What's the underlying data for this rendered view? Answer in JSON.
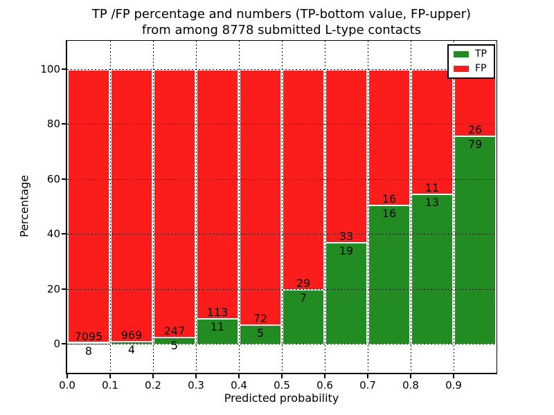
{
  "title": {
    "line1": "TP /FP percentage and numbers (TP-bottom value, FP-upper)",
    "line2": "from among 8778 submitted L-type contacts"
  },
  "chart_data": {
    "type": "bar",
    "subtype": "stacked-percentage",
    "title": "TP /FP percentage and numbers (TP-bottom value, FP-upper) from among 8778 submitted L-type contacts",
    "xlabel": "Predicted probability",
    "ylabel": "Percentage",
    "total_submitted": 8778,
    "bin_width": 0.1,
    "bin_starts": [
      0.0,
      0.1,
      0.2,
      0.3,
      0.4,
      0.5,
      0.6,
      0.7,
      0.8,
      0.9
    ],
    "x_tick_labels": [
      "0.0",
      "0.1",
      "0.2",
      "0.3",
      "0.4",
      "0.5",
      "0.6",
      "0.7",
      "0.8",
      "0.9"
    ],
    "y_ticks": [
      0,
      20,
      40,
      60,
      80,
      100
    ],
    "ylim": [
      -10.6,
      110.3
    ],
    "xlim": [
      0.0,
      1.0
    ],
    "grid": {
      "style": "dotted",
      "color": "#000000"
    },
    "series": [
      {
        "name": "TP",
        "color": "#228b22",
        "counts": [
          8,
          4,
          5,
          11,
          5,
          7,
          19,
          16,
          13,
          79
        ]
      },
      {
        "name": "FP",
        "color": "#fb1c1c",
        "counts": [
          7095,
          969,
          247,
          113,
          72,
          29,
          33,
          16,
          11,
          26
        ]
      }
    ],
    "legend": {
      "position": "upper-right",
      "entries": [
        {
          "label": "TP",
          "color": "#228b22"
        },
        {
          "label": "FP",
          "color": "#fb1c1c"
        }
      ]
    }
  },
  "colors": {
    "tp": "#228b22",
    "fp": "#fb1c1c",
    "background": "#ffffff",
    "axis": "#000000"
  }
}
